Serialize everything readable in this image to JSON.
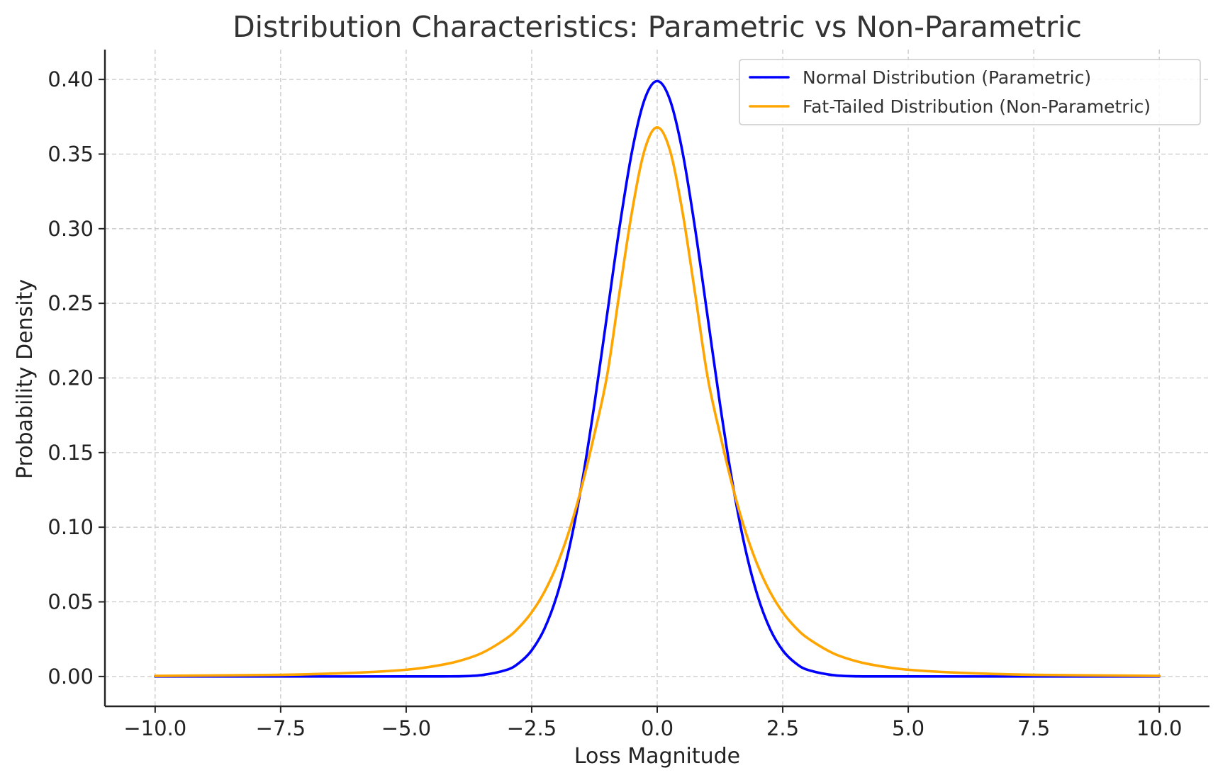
{
  "chart_data": {
    "type": "line",
    "title": "Distribution Characteristics: Parametric vs Non-Parametric",
    "xlabel": "Loss Magnitude",
    "ylabel": "Probability Density",
    "xlim": [
      -11,
      11
    ],
    "ylim": [
      -0.02,
      0.42
    ],
    "xticks": [
      -10,
      -7.5,
      -5,
      -2.5,
      0,
      2.5,
      5,
      7.5,
      10
    ],
    "xtick_labels": [
      "−10.0",
      "−7.5",
      "−5.0",
      "−2.5",
      "0.0",
      "2.5",
      "5.0",
      "7.5",
      "10.0"
    ],
    "yticks": [
      0,
      0.05,
      0.1,
      0.15,
      0.2,
      0.25,
      0.3,
      0.35,
      0.4
    ],
    "ytick_labels": [
      "0.00",
      "0.05",
      "0.10",
      "0.15",
      "0.20",
      "0.25",
      "0.30",
      "0.35",
      "0.40"
    ],
    "grid": true,
    "legend_position": "top-right",
    "series": [
      {
        "name": "Normal Distribution (Parametric)",
        "color": "#0000ff",
        "x": [
          -10,
          -7.5,
          -5,
          -4,
          -3.5,
          -3,
          -2.75,
          -2.5,
          -2.25,
          -2,
          -1.75,
          -1.5,
          -1.25,
          -1,
          -0.75,
          -0.5,
          -0.25,
          0,
          0.25,
          0.5,
          0.75,
          1,
          1.25,
          1.5,
          1.75,
          2,
          2.25,
          2.5,
          2.75,
          3,
          3.5,
          4,
          5,
          7.5,
          10
        ],
        "y": [
          0.0,
          0.0,
          0.0,
          0.0001,
          0.0009,
          0.0044,
          0.0091,
          0.0175,
          0.0317,
          0.054,
          0.0863,
          0.1295,
          0.1826,
          0.242,
          0.3011,
          0.3521,
          0.3867,
          0.3989,
          0.3867,
          0.3521,
          0.3011,
          0.242,
          0.1826,
          0.1295,
          0.0863,
          0.054,
          0.0317,
          0.0175,
          0.0091,
          0.0044,
          0.0009,
          0.0001,
          0.0,
          0.0,
          0.0
        ]
      },
      {
        "name": "Fat-Tailed Distribution (Non-Parametric)",
        "color": "#ffa500",
        "x": [
          -10,
          -7.5,
          -6,
          -5,
          -4.5,
          -4,
          -3.5,
          -3,
          -2.75,
          -2.5,
          -2.25,
          -2,
          -1.75,
          -1.5,
          -1.25,
          -1,
          -0.75,
          -0.5,
          -0.25,
          0,
          0.25,
          0.5,
          0.75,
          1,
          1.25,
          1.5,
          1.75,
          2,
          2.25,
          2.5,
          2.75,
          3,
          3.5,
          4,
          4.5,
          5,
          6,
          7.5,
          10
        ],
        "y": [
          0.0004,
          0.0011,
          0.0025,
          0.0045,
          0.0066,
          0.0099,
          0.0156,
          0.0256,
          0.033,
          0.043,
          0.0565,
          0.0745,
          0.098,
          0.1275,
          0.1625,
          0.2013,
          0.2576,
          0.3119,
          0.3529,
          0.3679,
          0.3529,
          0.3119,
          0.2576,
          0.2013,
          0.1625,
          0.1275,
          0.098,
          0.0745,
          0.0565,
          0.043,
          0.033,
          0.0256,
          0.0156,
          0.0099,
          0.0066,
          0.0045,
          0.0025,
          0.0011,
          0.0004
        ]
      }
    ]
  }
}
